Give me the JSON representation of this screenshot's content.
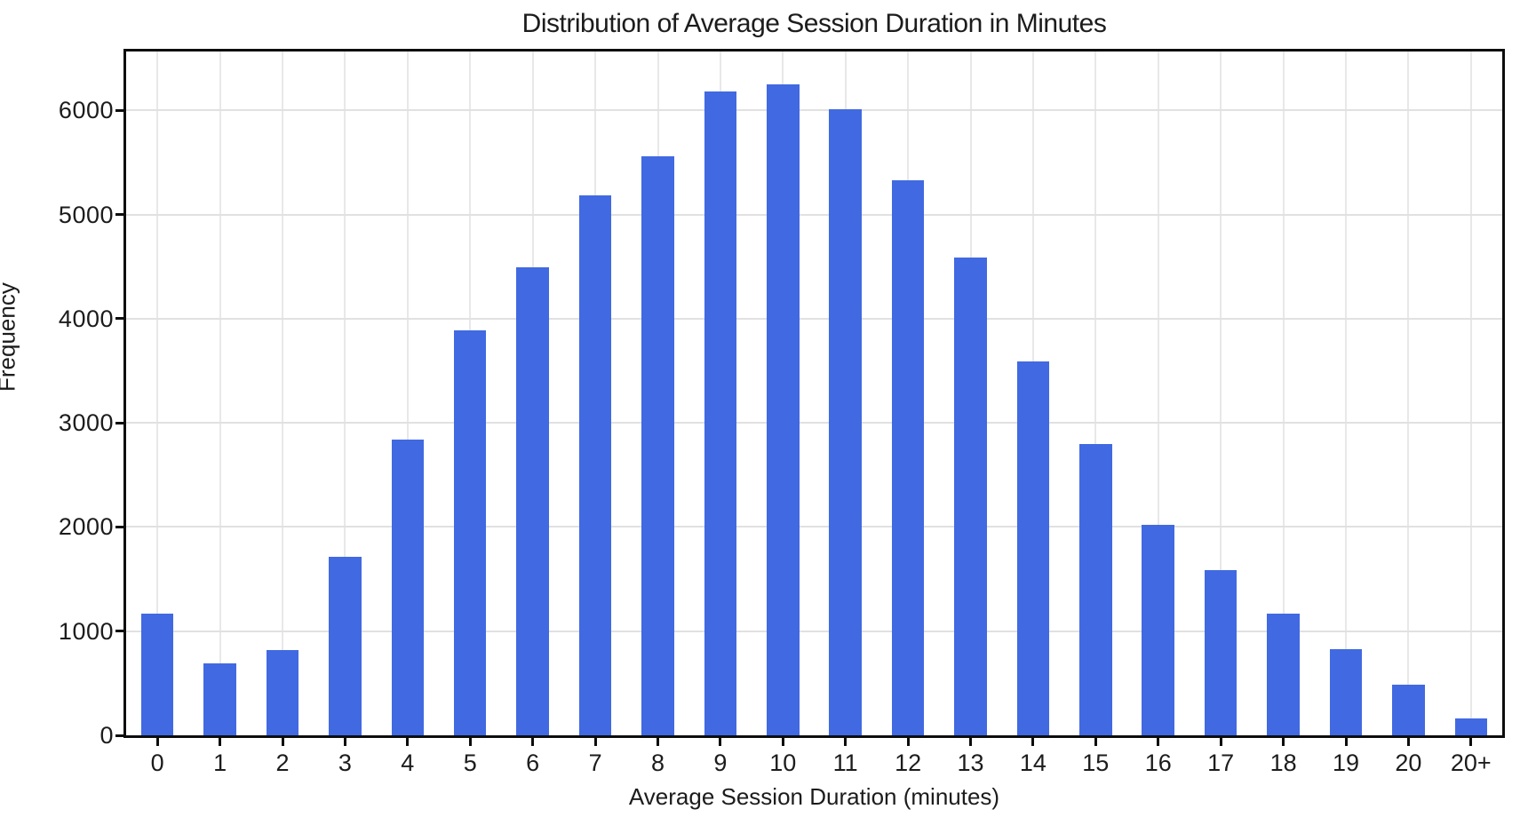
{
  "chart_data": {
    "type": "bar",
    "title": "Distribution of Average Session Duration in Minutes",
    "xlabel": "Average Session Duration (minutes)",
    "ylabel": "Frequency",
    "categories": [
      "0",
      "1",
      "2",
      "3",
      "4",
      "5",
      "6",
      "7",
      "8",
      "9",
      "10",
      "11",
      "12",
      "13",
      "14",
      "15",
      "16",
      "17",
      "18",
      "19",
      "20",
      "20+"
    ],
    "values": [
      1170,
      690,
      820,
      1710,
      2840,
      3890,
      4490,
      5180,
      5560,
      6180,
      6250,
      6010,
      5330,
      4590,
      3590,
      2800,
      2020,
      1590,
      1170,
      830,
      490,
      160
    ],
    "yticks": [
      0,
      1000,
      2000,
      3000,
      4000,
      5000,
      6000
    ],
    "ylim": [
      0,
      6565
    ],
    "grid": true,
    "legend": "none",
    "bar_color": "#4169e1",
    "grid_color_h": "#e1e1e1",
    "grid_color_v": "#e8e8e8",
    "frame_color": "#0d0d0d",
    "text_color": "#1c1c1c",
    "bar_width_ratio": 0.52
  }
}
